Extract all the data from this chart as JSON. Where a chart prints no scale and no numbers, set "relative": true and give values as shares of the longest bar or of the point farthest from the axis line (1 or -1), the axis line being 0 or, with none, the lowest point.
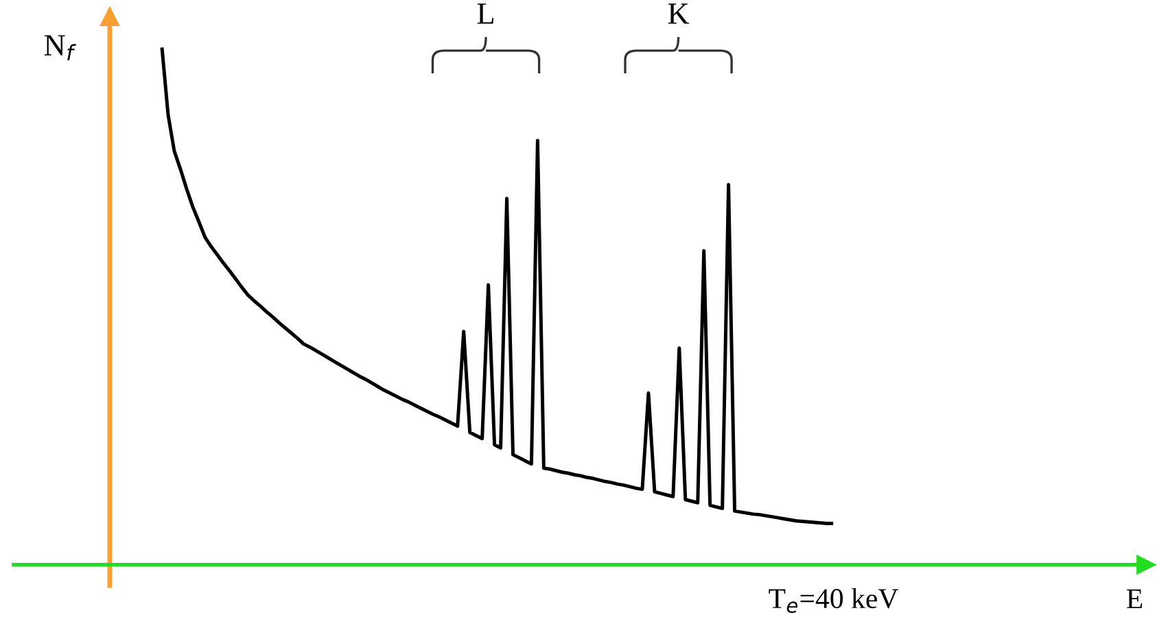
{
  "chart_data": {
    "type": "line",
    "relative": true,
    "ylabel": "N$_{f}$",
    "marker": "none",
    "line_style": "solid",
    "categories": [
      null,
      null,
      null,
      null,
      null,
      null,
      null,
      null,
      null,
      null,
      null,
      null,
      null,
      null,
      null,
      null,
      null,
      null,
      null,
      null,
      null,
      null,
      null,
      null,
      null,
      null,
      null,
      null,
      null,
      null,
      null,
      null,
      null,
      null,
      null,
      null,
      null,
      null,
      null,
      null,
      null,
      null,
      null,
      null,
      null,
      null,
      null,
      null,
      null,
      null,
      null,
      null,
      null,
      null,
      null,
      null,
      null,
      null,
      null,
      null,
      null,
      null,
      null,
      null,
      null,
      null,
      null,
      null,
      null,
      null,
      null,
      null,
      null,
      null,
      null,
      null,
      null,
      null,
      null,
      null,
      null,
      null,
      null,
      null,
      null,
      null,
      null,
      null,
      null,
      null,
      null,
      null,
      null,
      null,
      null,
      null,
      null,
      null,
      null,
      null,
      null,
      null,
      null,
      null,
      null,
      null,
      null,
      null,
      null,
      null
    ],
    "series": [
      {
        "color": "#000000",
        "values": [
          1.0,
          0.87,
          0.8,
          0.765,
          0.727,
          0.692,
          0.663,
          0.633,
          0.615,
          0.599,
          0.583,
          0.568,
          0.552,
          0.536,
          0.521,
          0.51,
          0.5,
          0.489,
          0.479,
          0.468,
          0.458,
          0.448,
          0.438,
          0.427,
          0.421,
          0.414,
          0.407,
          0.4,
          0.393,
          0.386,
          0.379,
          0.372,
          0.365,
          0.359,
          0.352,
          0.345,
          0.338,
          0.332,
          0.326,
          0.32,
          0.315,
          0.309,
          0.303,
          0.297,
          0.291,
          0.286,
          0.28,
          0.274,
          0.268,
          0.451,
          0.256,
          0.25,
          0.244,
          0.541,
          0.232,
          0.226,
          0.708,
          0.213,
          0.207,
          0.201,
          0.195,
          0.82,
          0.187,
          0.185,
          0.182,
          0.179,
          0.177,
          0.174,
          0.172,
          0.169,
          0.167,
          0.164,
          0.161,
          0.159,
          0.156,
          0.154,
          0.151,
          0.148,
          0.146,
          0.332,
          0.141,
          0.138,
          0.135,
          0.132,
          0.419,
          0.126,
          0.123,
          0.12,
          0.607,
          0.115,
          0.112,
          0.109,
          0.735,
          0.104,
          0.102,
          0.1,
          0.098,
          0.097,
          0.095,
          0.093,
          0.091,
          0.089,
          0.087,
          0.085,
          0.084,
          0.083,
          0.082,
          0.081,
          0.08,
          0.08
        ]
      }
    ],
    "annotations": [
      "L",
      "K",
      "T$_{e}$=40 keV",
      "E"
    ]
  }
}
